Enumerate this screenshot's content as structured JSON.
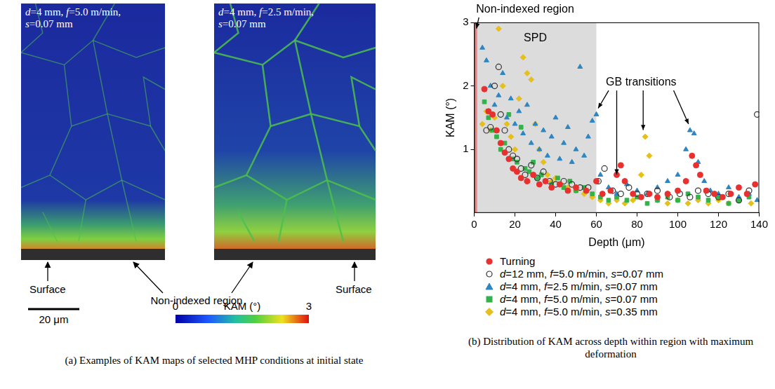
{
  "kam_maps": {
    "caption": "(a) Examples of KAM maps of selected MHP conditions at initial state",
    "maps": [
      {
        "title": "d=4 mm, f=5.0 m/min, s=0.07 mm"
      },
      {
        "title": "d=4 mm, f=2.5 m/min, s=0.07 mm"
      }
    ],
    "surface_label": "Surface",
    "non_indexed_label": "Non-indexed region",
    "scale_bar": "20 μm",
    "colorbar": {
      "label": "KAM (°)",
      "range": [
        0,
        3
      ],
      "ticks": [
        0,
        3
      ]
    }
  },
  "chart_data": {
    "type": "scatter",
    "caption": "(b) Distribution of KAM across depth within region with maximum deformation",
    "x_label": "Depth (μm)",
    "y_label": "KAM (°)",
    "xlim": [
      0,
      140
    ],
    "xticks": [
      0,
      20,
      40,
      60,
      80,
      100,
      120,
      140
    ],
    "ylim": [
      0,
      3
    ],
    "yticks": [
      1,
      2,
      3
    ],
    "grid": false,
    "legend": "bottom",
    "regions": [
      {
        "x": [
          0,
          60
        ],
        "color": "#dcdcdc"
      },
      {
        "x": [
          0,
          1.5
        ],
        "color": "#f08a8a"
      }
    ],
    "annotations": [
      {
        "text": "Non-indexed region",
        "x": 25,
        "y": 3.2,
        "targets": [
          [
            0.75,
            2.85
          ]
        ]
      },
      {
        "text": "SPD",
        "x": 30,
        "y": 2.75,
        "targets": []
      },
      {
        "text": "GB transitions",
        "x": 82,
        "y": 2.05,
        "targets": [
          [
            60,
            1.6
          ],
          [
            70,
            0.55
          ],
          [
            83,
            1.25
          ],
          [
            106,
            1.35
          ]
        ]
      }
    ],
    "series": [
      {
        "name": "Turning",
        "color": "#e8312f",
        "marker": "circle",
        "x": [
          5,
          7,
          9,
          11,
          13,
          15,
          17,
          19,
          21,
          23,
          26,
          29,
          32,
          35,
          38,
          42,
          46,
          50,
          55,
          60,
          63,
          67,
          70,
          72,
          74,
          78,
          82,
          86,
          90,
          95,
          100,
          104,
          107,
          109,
          111,
          114,
          118,
          122,
          126,
          130,
          134,
          138
        ],
        "values": [
          1.95,
          1.6,
          1.55,
          1.3,
          1.1,
          0.95,
          0.85,
          0.7,
          0.65,
          0.55,
          0.5,
          0.6,
          0.45,
          0.5,
          0.4,
          0.45,
          0.35,
          0.4,
          0.35,
          0.5,
          0.3,
          0.35,
          0.6,
          0.75,
          0.5,
          0.3,
          0.25,
          0.3,
          0.25,
          0.3,
          0.35,
          0.5,
          0.9,
          0.75,
          0.6,
          0.35,
          0.3,
          0.25,
          0.3,
          0.4,
          0.3,
          0.45
        ]
      },
      {
        "name": "d=12 mm, f=5.0 m/min, s=0.07 mm",
        "color": "#333333",
        "marker": "open_circle",
        "x": [
          6,
          8,
          10,
          12,
          13,
          15,
          17,
          19,
          21,
          23,
          25,
          28,
          31,
          34,
          37,
          40,
          44,
          48,
          52,
          56,
          61,
          64,
          68,
          72,
          76,
          80,
          85,
          90,
          96,
          101,
          106,
          110,
          115,
          120,
          125,
          130,
          135,
          139
        ],
        "values": [
          1.3,
          1.35,
          2.0,
          2.3,
          1.55,
          1.3,
          1.0,
          0.9,
          0.85,
          0.7,
          0.6,
          0.75,
          0.55,
          0.65,
          0.5,
          0.45,
          0.5,
          0.45,
          0.4,
          0.4,
          0.5,
          0.7,
          0.35,
          0.3,
          0.4,
          0.3,
          0.3,
          0.35,
          0.25,
          0.3,
          0.25,
          0.35,
          0.3,
          0.25,
          0.3,
          0.2,
          0.35,
          1.55
        ]
      },
      {
        "name": "d=4 mm, f=2.5 m/min, s=0.07 mm",
        "color": "#2e86c1",
        "marker": "triangle",
        "x": [
          4,
          6,
          8,
          10,
          12,
          14,
          16,
          18,
          20,
          22,
          24,
          26,
          28,
          30,
          32,
          34,
          36,
          38,
          40,
          42,
          44,
          46,
          48,
          50,
          52,
          54,
          56,
          58,
          60,
          62,
          66,
          70,
          75,
          80,
          85,
          90,
          95,
          100,
          104,
          106,
          108,
          110,
          113,
          116,
          120,
          125,
          130,
          135,
          139
        ],
        "values": [
          2.6,
          2.4,
          2.0,
          1.7,
          1.85,
          2.2,
          1.5,
          1.8,
          1.4,
          1.6,
          1.25,
          1.7,
          1.1,
          1.4,
          1.0,
          1.3,
          0.9,
          1.2,
          1.5,
          0.85,
          1.1,
          1.35,
          0.8,
          1.0,
          2.3,
          0.9,
          1.2,
          1.45,
          1.55,
          0.6,
          0.4,
          0.3,
          0.45,
          0.35,
          0.3,
          0.4,
          0.5,
          0.6,
          1.0,
          1.3,
          1.25,
          0.8,
          0.5,
          0.35,
          0.3,
          0.4,
          0.25,
          0.3,
          0.2
        ]
      },
      {
        "name": "d=4 mm, f=5.0 m/min, s=0.07 mm",
        "color": "#33b24a",
        "marker": "square",
        "x": [
          5,
          7,
          9,
          11,
          13,
          15,
          17,
          19,
          21,
          23,
          25,
          27,
          29,
          31,
          33,
          35,
          38,
          41,
          44,
          47,
          50,
          54,
          58,
          62,
          66,
          70,
          75,
          80,
          85,
          90,
          95,
          100,
          105,
          110,
          115,
          120,
          125,
          130,
          135
        ],
        "values": [
          1.75,
          1.5,
          1.3,
          1.2,
          1.0,
          1.1,
          1.55,
          0.85,
          0.8,
          1.35,
          0.7,
          0.65,
          0.8,
          0.55,
          0.6,
          0.5,
          0.45,
          0.55,
          0.4,
          0.5,
          0.35,
          0.4,
          0.3,
          0.25,
          0.2,
          0.25,
          0.2,
          0.25,
          0.15,
          0.2,
          0.25,
          0.2,
          0.3,
          0.25,
          0.2,
          0.25,
          0.15,
          0.2,
          0.25
        ]
      },
      {
        "name": "d=4 mm, f=5.0 m/min, s=0.35 mm",
        "color": "#e6bf1a",
        "marker": "diamond",
        "x": [
          4,
          6,
          8,
          10,
          12,
          14,
          16,
          18,
          20,
          22,
          24,
          26,
          28,
          30,
          32,
          34,
          36,
          38,
          40,
          43,
          46,
          50,
          54,
          58,
          62,
          66,
          70,
          74,
          78,
          82,
          84,
          86,
          90,
          95,
          100,
          105,
          110,
          115,
          120,
          125,
          130,
          136
        ],
        "values": [
          1.4,
          1.6,
          1.3,
          1.5,
          2.9,
          2.0,
          1.4,
          1.2,
          1.0,
          1.8,
          2.45,
          2.2,
          2.1,
          1.4,
          1.0,
          0.8,
          0.6,
          0.5,
          0.55,
          0.45,
          0.4,
          0.35,
          0.3,
          0.25,
          0.2,
          0.15,
          0.2,
          0.15,
          0.2,
          0.6,
          1.2,
          0.9,
          0.2,
          0.15,
          0.2,
          0.15,
          0.2,
          0.15,
          0.2,
          0.15,
          0.2,
          0.15
        ]
      }
    ]
  }
}
